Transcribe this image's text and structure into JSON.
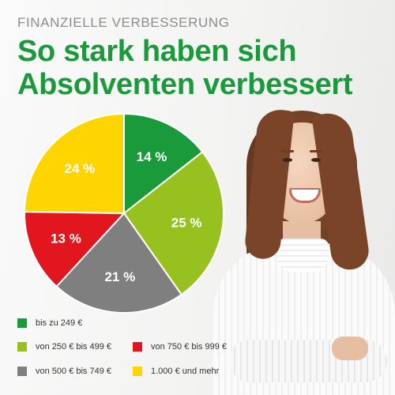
{
  "header": {
    "kicker": "FINANZIELLE VERBESSERUNG",
    "title_line1": "So stark haben sich",
    "title_line2": "Absolventen verbessert"
  },
  "chart_data": {
    "type": "pie",
    "title": "",
    "start_angle_deg": 0,
    "direction": "clockwise",
    "slices": [
      {
        "label": "bis zu 249 €",
        "value": 14,
        "display": "14 %",
        "color": "#1a9a3a"
      },
      {
        "label": "von 250 € bis 499 €",
        "value": 25,
        "display": "25 %",
        "color": "#96c11f"
      },
      {
        "label": "von 500 € bis 749 €",
        "value": 21,
        "display": "21 %",
        "color": "#7f7f7f"
      },
      {
        "label": "von 750 € bis 999 €",
        "value": 13,
        "display": "13 %",
        "color": "#e2161f"
      },
      {
        "label": "1.000 € und mehr",
        "value": 24,
        "display": "24 %",
        "color": "#ffd500"
      }
    ],
    "legend": [
      {
        "label": "bis zu 249 €",
        "color": "#1a9a3a"
      },
      {
        "label": "von 250 € bis 499 €",
        "color": "#96c11f"
      },
      {
        "label": "von 750 € bis 999 €",
        "color": "#e2161f"
      },
      {
        "label": "von 500 € bis 749 €",
        "color": "#7f7f7f"
      },
      {
        "label": "1.000 € und mehr",
        "color": "#ffd500"
      }
    ],
    "legend_placement": "bottom-left"
  },
  "colors": {
    "headline": "#1a9a3a",
    "kicker": "#8c8c8c"
  }
}
